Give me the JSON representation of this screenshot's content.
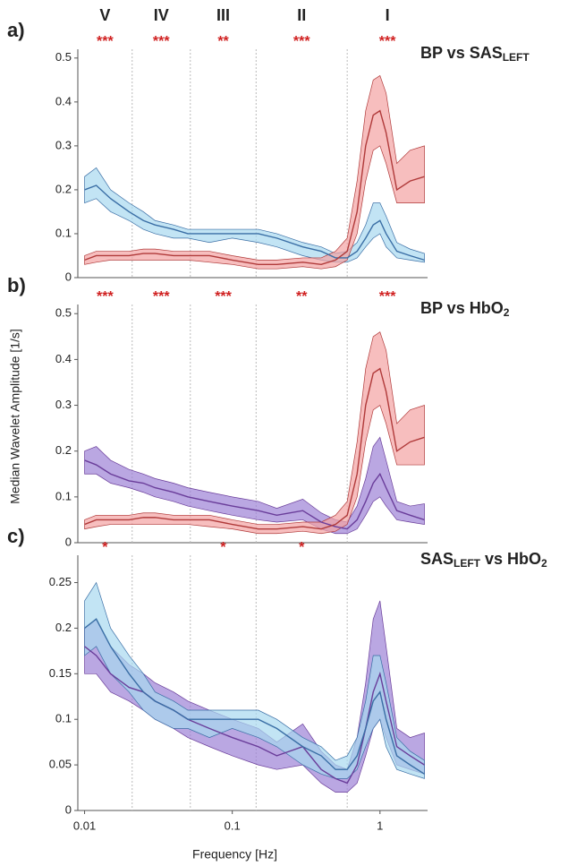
{
  "chart_data": [
    {
      "type": "line",
      "panel": "a)",
      "title": [
        {
          "t": "BP vs SAS"
        },
        {
          "sub": "LEFT"
        }
      ],
      "band_labels": [
        "V",
        "IV",
        "III",
        "II",
        "I"
      ],
      "stars": [
        "***",
        "***",
        "**",
        "***",
        "***"
      ],
      "band_edges": [
        0.021,
        0.052,
        0.145,
        0.6
      ],
      "log_x": true,
      "xlim": [
        0.009,
        2.1
      ],
      "ylim": [
        0,
        0.52
      ],
      "yticks": [
        0,
        0.1,
        0.2,
        0.3,
        0.4,
        0.5
      ],
      "x": [
        0.01,
        0.012,
        0.015,
        0.02,
        0.025,
        0.03,
        0.04,
        0.05,
        0.07,
        0.1,
        0.15,
        0.2,
        0.3,
        0.4,
        0.5,
        0.6,
        0.7,
        0.8,
        0.9,
        1,
        1.1,
        1.3,
        1.6,
        2
      ],
      "series": [
        {
          "name": "SAS",
          "color": "#3a6ea5",
          "fill": "#a8d8f0",
          "values": [
            0.2,
            0.21,
            0.18,
            0.15,
            0.13,
            0.12,
            0.11,
            0.1,
            0.1,
            0.1,
            0.1,
            0.09,
            0.07,
            0.06,
            0.045,
            0.045,
            0.06,
            0.09,
            0.12,
            0.13,
            0.1,
            0.06,
            0.05,
            0.04
          ],
          "lower": [
            0.17,
            0.18,
            0.15,
            0.13,
            0.11,
            0.1,
            0.09,
            0.09,
            0.08,
            0.09,
            0.08,
            0.07,
            0.05,
            0.04,
            0.035,
            0.035,
            0.045,
            0.07,
            0.09,
            0.1,
            0.07,
            0.045,
            0.04,
            0.035
          ],
          "upper": [
            0.23,
            0.25,
            0.2,
            0.17,
            0.15,
            0.13,
            0.12,
            0.11,
            0.11,
            0.11,
            0.11,
            0.1,
            0.08,
            0.07,
            0.055,
            0.06,
            0.08,
            0.12,
            0.17,
            0.17,
            0.14,
            0.08,
            0.065,
            0.055
          ]
        },
        {
          "name": "BP",
          "color": "#b03a3a",
          "fill": "#f3a3a3",
          "values": [
            0.04,
            0.05,
            0.05,
            0.05,
            0.055,
            0.055,
            0.05,
            0.05,
            0.05,
            0.04,
            0.03,
            0.03,
            0.035,
            0.03,
            0.04,
            0.06,
            0.15,
            0.3,
            0.37,
            0.38,
            0.33,
            0.2,
            0.22,
            0.23
          ],
          "lower": [
            0.03,
            0.035,
            0.04,
            0.04,
            0.04,
            0.04,
            0.04,
            0.04,
            0.035,
            0.03,
            0.02,
            0.02,
            0.025,
            0.02,
            0.025,
            0.04,
            0.1,
            0.22,
            0.29,
            0.3,
            0.26,
            0.17,
            0.17,
            0.17
          ],
          "upper": [
            0.05,
            0.06,
            0.06,
            0.06,
            0.065,
            0.065,
            0.06,
            0.06,
            0.06,
            0.05,
            0.04,
            0.04,
            0.045,
            0.045,
            0.06,
            0.09,
            0.22,
            0.38,
            0.45,
            0.46,
            0.42,
            0.26,
            0.29,
            0.3
          ]
        }
      ]
    },
    {
      "type": "line",
      "panel": "b)",
      "title": [
        {
          "t": "BP vs HbO"
        },
        {
          "sub": "2"
        }
      ],
      "ylabel": "Median Wavelet Amplitude [1/s]",
      "stars": [
        "***",
        "***",
        "***",
        "**",
        "***"
      ],
      "band_edges": [
        0.021,
        0.052,
        0.145,
        0.6
      ],
      "log_x": true,
      "xlim": [
        0.009,
        2.1
      ],
      "ylim": [
        0,
        0.52
      ],
      "yticks": [
        0,
        0.1,
        0.2,
        0.3,
        0.4,
        0.5
      ],
      "x": [
        0.01,
        0.012,
        0.015,
        0.02,
        0.025,
        0.03,
        0.04,
        0.05,
        0.07,
        0.1,
        0.15,
        0.2,
        0.3,
        0.4,
        0.5,
        0.6,
        0.7,
        0.8,
        0.9,
        1,
        1.1,
        1.3,
        1.6,
        2
      ],
      "series": [
        {
          "name": "HbO2",
          "color": "#6a3d9a",
          "fill": "#9c82d6",
          "values": [
            0.18,
            0.17,
            0.15,
            0.135,
            0.13,
            0.12,
            0.11,
            0.1,
            0.09,
            0.08,
            0.07,
            0.06,
            0.07,
            0.045,
            0.035,
            0.03,
            0.05,
            0.09,
            0.13,
            0.15,
            0.12,
            0.07,
            0.06,
            0.05
          ],
          "lower": [
            0.15,
            0.15,
            0.13,
            0.12,
            0.11,
            0.1,
            0.09,
            0.08,
            0.07,
            0.06,
            0.05,
            0.045,
            0.05,
            0.03,
            0.02,
            0.02,
            0.03,
            0.06,
            0.09,
            0.1,
            0.08,
            0.05,
            0.045,
            0.04
          ],
          "upper": [
            0.2,
            0.21,
            0.18,
            0.16,
            0.15,
            0.14,
            0.13,
            0.12,
            0.11,
            0.1,
            0.09,
            0.075,
            0.095,
            0.065,
            0.05,
            0.045,
            0.08,
            0.14,
            0.21,
            0.23,
            0.18,
            0.09,
            0.08,
            0.085
          ]
        },
        {
          "name": "BP",
          "color": "#b03a3a",
          "fill": "#f3a3a3",
          "values": [
            0.04,
            0.05,
            0.05,
            0.05,
            0.055,
            0.055,
            0.05,
            0.05,
            0.05,
            0.04,
            0.03,
            0.03,
            0.035,
            0.03,
            0.04,
            0.06,
            0.15,
            0.3,
            0.37,
            0.38,
            0.33,
            0.2,
            0.22,
            0.23
          ],
          "lower": [
            0.03,
            0.035,
            0.04,
            0.04,
            0.04,
            0.04,
            0.04,
            0.04,
            0.035,
            0.03,
            0.02,
            0.02,
            0.025,
            0.02,
            0.025,
            0.04,
            0.1,
            0.22,
            0.29,
            0.3,
            0.26,
            0.17,
            0.17,
            0.17
          ],
          "upper": [
            0.05,
            0.06,
            0.06,
            0.06,
            0.065,
            0.065,
            0.06,
            0.06,
            0.06,
            0.05,
            0.04,
            0.04,
            0.045,
            0.045,
            0.06,
            0.09,
            0.22,
            0.38,
            0.45,
            0.46,
            0.42,
            0.26,
            0.29,
            0.3
          ]
        }
      ]
    },
    {
      "type": "line",
      "panel": "c)",
      "title": [
        {
          "t": "SAS"
        },
        {
          "sub": "LEFT"
        },
        {
          "t": " vs HbO"
        },
        {
          "sub": "2"
        }
      ],
      "xlabel": "Frequency [Hz]",
      "stars": [
        "*",
        null,
        "*",
        "*",
        null
      ],
      "band_edges": [
        0.021,
        0.052,
        0.145,
        0.6
      ],
      "log_x": true,
      "xlim": [
        0.009,
        2.1
      ],
      "ylim": [
        0,
        0.28
      ],
      "yticks": [
        0,
        0.05,
        0.1,
        0.15,
        0.2,
        0.25
      ],
      "xticks": [
        0.01,
        0.1,
        1
      ],
      "x": [
        0.01,
        0.012,
        0.015,
        0.02,
        0.025,
        0.03,
        0.04,
        0.05,
        0.07,
        0.1,
        0.15,
        0.2,
        0.3,
        0.4,
        0.5,
        0.6,
        0.7,
        0.8,
        0.9,
        1,
        1.1,
        1.3,
        1.6,
        2
      ],
      "series": [
        {
          "name": "HbO2",
          "color": "#6a3d9a",
          "fill": "#9c82d6",
          "values": [
            0.18,
            0.17,
            0.15,
            0.135,
            0.13,
            0.12,
            0.11,
            0.1,
            0.09,
            0.08,
            0.07,
            0.06,
            0.07,
            0.045,
            0.035,
            0.03,
            0.05,
            0.09,
            0.13,
            0.15,
            0.12,
            0.07,
            0.06,
            0.05
          ],
          "lower": [
            0.15,
            0.15,
            0.13,
            0.12,
            0.11,
            0.1,
            0.09,
            0.08,
            0.07,
            0.06,
            0.05,
            0.045,
            0.05,
            0.03,
            0.02,
            0.02,
            0.03,
            0.06,
            0.09,
            0.1,
            0.08,
            0.05,
            0.045,
            0.04
          ],
          "upper": [
            0.2,
            0.21,
            0.18,
            0.16,
            0.15,
            0.14,
            0.13,
            0.12,
            0.11,
            0.1,
            0.09,
            0.075,
            0.095,
            0.065,
            0.05,
            0.045,
            0.08,
            0.14,
            0.21,
            0.23,
            0.18,
            0.09,
            0.08,
            0.085
          ]
        },
        {
          "name": "SAS",
          "color": "#3a6ea5",
          "fill": "#a8d8f0",
          "values": [
            0.2,
            0.21,
            0.18,
            0.15,
            0.13,
            0.12,
            0.11,
            0.1,
            0.1,
            0.1,
            0.1,
            0.09,
            0.07,
            0.06,
            0.045,
            0.045,
            0.06,
            0.09,
            0.12,
            0.13,
            0.1,
            0.06,
            0.05,
            0.04
          ],
          "lower": [
            0.17,
            0.18,
            0.15,
            0.13,
            0.11,
            0.1,
            0.09,
            0.09,
            0.08,
            0.09,
            0.08,
            0.07,
            0.05,
            0.04,
            0.035,
            0.035,
            0.045,
            0.07,
            0.09,
            0.1,
            0.07,
            0.045,
            0.04,
            0.035
          ],
          "upper": [
            0.23,
            0.25,
            0.2,
            0.17,
            0.15,
            0.13,
            0.12,
            0.11,
            0.11,
            0.11,
            0.11,
            0.1,
            0.08,
            0.07,
            0.055,
            0.06,
            0.08,
            0.12,
            0.17,
            0.17,
            0.14,
            0.08,
            0.065,
            0.055
          ]
        }
      ]
    }
  ]
}
